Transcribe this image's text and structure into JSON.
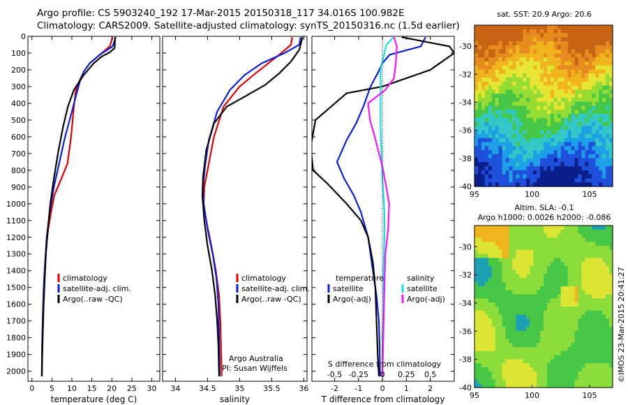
{
  "header": {
    "title_line1": "Argo profile: CS 5903240_192 17-Mar-2015 20150318_117 34.016S 100.982E",
    "title_line2": "Climatology: CARS2009. Satellite-adjusted climatology: synTS_20150316.nc (1.5d earlier)"
  },
  "maps": {
    "sst_title": "sat. SST: 20.9 Argo: 20.6",
    "sla_title_line1": "Altim. SLA: -0.1",
    "sla_title_line2": "Argo h1000: 0.0026 h2000: -0.086",
    "stamp": "©IMOS 23-Mar-2015 20:41:27",
    "sst_colors": [
      "#0a1e8c",
      "#1e50dc",
      "#1ea0e6",
      "#32c8c8",
      "#46c846",
      "#96dc32",
      "#e6e632",
      "#f0b41e",
      "#e68c1e",
      "#c86414"
    ],
    "sla_colors": [
      "#1ea0b4",
      "#46c846",
      "#8cdc3c",
      "#dce632",
      "#f0b41e"
    ]
  },
  "colors": {
    "climatology": "#e00000",
    "satellite": "#0a1edc",
    "argo": "#000000",
    "sal_satellite": "#10e0e8",
    "sal_argo": "#ff10ff"
  },
  "chart_data": [
    {
      "type": "line",
      "title": "",
      "xlabel": "temperature (deg C)",
      "ylabel": "",
      "xlim": [
        -1,
        32
      ],
      "ylim": [
        2060,
        0
      ],
      "xticks": [
        0,
        5,
        10,
        15,
        20,
        25,
        30
      ],
      "xtick_labels": [
        "0",
        "5",
        "10",
        "15",
        "20",
        "25",
        "30"
      ],
      "yticks": [
        0,
        100,
        200,
        300,
        400,
        500,
        600,
        700,
        800,
        900,
        1000,
        1100,
        1200,
        1300,
        1400,
        1500,
        1600,
        1700,
        1800,
        1900,
        2000
      ],
      "ytick_labels": [
        "0",
        "100",
        "200",
        "300",
        "400",
        "500",
        "600",
        "700",
        "800",
        "900",
        "1000",
        "1100",
        "1200",
        "1300",
        "1400",
        "1500",
        "1600",
        "1700",
        "1800",
        "1900",
        "2000"
      ],
      "legend": [
        "climatology",
        "satellite-adj. clim.",
        "Argo(..raw -QC)"
      ],
      "series": [
        {
          "name": "climatology",
          "color": "#e00000",
          "x": [
            20.2,
            19.5,
            17,
            14.5,
            13,
            12,
            11,
            10.5,
            9.8,
            8.9,
            7.2,
            5.6,
            4.8,
            4.1,
            3.6,
            3.2,
            2.9,
            2.7,
            2.55,
            2.45
          ],
          "y": [
            5,
            60,
            110,
            160,
            210,
            260,
            320,
            420,
            600,
            760,
            860,
            950,
            1050,
            1150,
            1250,
            1400,
            1550,
            1700,
            1850,
            2030
          ]
        },
        {
          "name": "satellite-adj. clim.",
          "color": "#0a1edc",
          "x": [
            21,
            20.2,
            17,
            14.5,
            13,
            12,
            11.2,
            10,
            8.3,
            6.8,
            5.5,
            4.8,
            4.2,
            3.7,
            3.3,
            2.95,
            2.75,
            2.6,
            2.5
          ],
          "y": [
            5,
            60,
            110,
            160,
            210,
            270,
            340,
            450,
            600,
            760,
            900,
            1000,
            1100,
            1200,
            1350,
            1500,
            1650,
            1800,
            2030
          ]
        },
        {
          "name": "Argo(..raw -QC)",
          "color": "#000000",
          "x": [
            20.8,
            20.7,
            19.5,
            17.5,
            15.5,
            13,
            10.5,
            9,
            7.8,
            6.5,
            5.5,
            4.6,
            4,
            3.5,
            3.2,
            2.95,
            2.75,
            2.6,
            2.5
          ],
          "y": [
            5,
            70,
            95,
            120,
            160,
            230,
            320,
            420,
            540,
            700,
            850,
            1000,
            1150,
            1300,
            1450,
            1600,
            1750,
            1900,
            2030
          ]
        }
      ]
    },
    {
      "type": "line",
      "title": "",
      "xlabel": "salinity",
      "ylabel": "",
      "xlim": [
        33.8,
        36.05
      ],
      "ylim": [
        2060,
        0
      ],
      "xticks": [
        34,
        34.5,
        35,
        35.5,
        36
      ],
      "xtick_labels": [
        "34",
        "34.5",
        "35",
        "35.5",
        "36"
      ],
      "legend": [
        "climatology",
        "satellite-adj. clim.",
        "Argo(..raw -QC)"
      ],
      "annotations": [
        "Argo Australia",
        "PI: Susan Wijffels"
      ],
      "series": [
        {
          "name": "climatology",
          "color": "#e00000",
          "x": [
            35.82,
            35.8,
            35.65,
            35.45,
            35.22,
            35.0,
            34.75,
            34.6,
            34.5,
            34.45,
            34.44,
            34.48,
            34.56,
            34.63,
            34.68,
            34.7,
            34.71,
            34.72
          ],
          "y": [
            5,
            50,
            100,
            160,
            230,
            300,
            420,
            600,
            800,
            900,
            1000,
            1100,
            1250,
            1400,
            1550,
            1700,
            1850,
            2030
          ]
        },
        {
          "name": "satellite-adj. clim.",
          "color": "#0a1edc",
          "x": [
            35.95,
            35.93,
            35.7,
            35.35,
            35.08,
            34.85,
            34.65,
            34.52,
            34.46,
            34.43,
            34.44,
            34.5,
            34.58,
            34.64,
            34.67,
            34.68,
            34.69
          ],
          "y": [
            5,
            50,
            100,
            160,
            230,
            320,
            450,
            620,
            780,
            900,
            1000,
            1150,
            1300,
            1450,
            1600,
            1800,
            2030
          ]
        },
        {
          "name": "Argo(..raw -QC)",
          "color": "#000000",
          "x": [
            35.98,
            35.93,
            35.8,
            35.62,
            35.4,
            35.08,
            34.8,
            34.6,
            34.48,
            34.43,
            34.42,
            34.45,
            34.5,
            34.57,
            34.62,
            34.65,
            34.67,
            34.68
          ],
          "y": [
            5,
            80,
            150,
            220,
            290,
            360,
            420,
            520,
            680,
            840,
            950,
            1100,
            1250,
            1400,
            1550,
            1700,
            1850,
            2030
          ]
        }
      ]
    },
    {
      "type": "line",
      "title": "",
      "xlabel": "T difference from climatology",
      "x2label": "S difference from climatology",
      "ylabel": "",
      "xlim": [
        -2.95,
        3
      ],
      "ylim": [
        2060,
        0
      ],
      "xticks": [
        -2,
        -1,
        0,
        1,
        2
      ],
      "xtick_labels": [
        "-2",
        "-1",
        "0",
        "1",
        "2"
      ],
      "x2lim": [
        -0.737,
        0.75
      ],
      "x2ticks": [
        -0.5,
        -0.25,
        0,
        0.25,
        0.5
      ],
      "x2tick_labels": [
        "-0.5",
        "-0.25",
        "0",
        "0.25",
        "0.5"
      ],
      "legend_headers": [
        "temperature",
        "salinity"
      ],
      "legend": [
        "satellite",
        "Argo(-adj)",
        "satellite",
        "Argo(-adj)"
      ],
      "series": [
        {
          "name": "temperature satellite",
          "color": "#0a1edc",
          "axis": "T",
          "x": [
            1.8,
            1.6,
            0.3,
            0.0,
            -0.2,
            -0.5,
            -0.8,
            -1.1,
            -1.5,
            -1.9,
            -1.6,
            -1.2,
            -0.9,
            -0.6,
            -0.4,
            -0.25,
            -0.15,
            -0.12,
            -0.1
          ],
          "y": [
            5,
            60,
            110,
            160,
            220,
            300,
            420,
            520,
            620,
            750,
            850,
            950,
            1050,
            1200,
            1400,
            1550,
            1700,
            1850,
            2030
          ]
        },
        {
          "name": "temperature Argo(-adj)",
          "color": "#000000",
          "axis": "T",
          "x": [
            0.8,
            2.8,
            3.0,
            2.0,
            0.0,
            -1.5,
            -2.8,
            -3.0,
            -2.9,
            -2.3,
            -1.5,
            -0.9,
            -0.6,
            -0.4,
            -0.3,
            -0.25,
            -0.2,
            -0.15
          ],
          "y": [
            5,
            60,
            100,
            200,
            300,
            340,
            500,
            660,
            800,
            880,
            1000,
            1100,
            1200,
            1350,
            1500,
            1700,
            1900,
            2030
          ]
        },
        {
          "name": "salinity satellite",
          "color": "#10e0e8",
          "axis": "S",
          "x": [
            0.12,
            0.04,
            0.02,
            -0.02,
            -0.02,
            -0.02,
            -0.02,
            -0.01,
            0.0,
            0.01,
            0.02,
            0.02,
            0.01,
            0.01,
            0.0,
            0.0
          ],
          "y": [
            5,
            50,
            100,
            200,
            300,
            400,
            550,
            700,
            850,
            950,
            1050,
            1200,
            1400,
            1600,
            1800,
            2030
          ]
        },
        {
          "name": "salinity Argo(-adj)",
          "color": "#ff10ff",
          "axis": "S",
          "x": [
            0.12,
            0.15,
            0.14,
            0.12,
            0.03,
            -0.15,
            -0.13,
            -0.08,
            0.0,
            0.04,
            0.07,
            0.06,
            0.03,
            0.02,
            0.01,
            0.0
          ],
          "y": [
            5,
            60,
            160,
            250,
            320,
            400,
            500,
            600,
            780,
            900,
            1000,
            1150,
            1300,
            1500,
            1750,
            2030
          ]
        }
      ]
    },
    {
      "type": "heatmap",
      "title": "sat. SST: 20.9 Argo: 20.6",
      "xlim": [
        95,
        107
      ],
      "ylim": [
        -40,
        -28.5
      ],
      "xticks": [
        95,
        100,
        105
      ],
      "xtick_labels": [
        "95",
        "100",
        "105"
      ],
      "yticks": [
        -40,
        -38,
        -36,
        -34,
        -32,
        -30
      ],
      "ytick_labels": [
        "-40",
        "-38",
        "-36",
        "-34",
        "-32",
        "-30"
      ]
    },
    {
      "type": "heatmap",
      "title": "Altim. SLA: -0.1 / Argo h1000: 0.0026 h2000: -0.086",
      "xlim": [
        95,
        107
      ],
      "ylim": [
        -40,
        -28.5
      ],
      "xticks": [
        95,
        100,
        105
      ],
      "xtick_labels": [
        "95",
        "100",
        "105"
      ],
      "yticks": [
        -40,
        -38,
        -36,
        -34,
        -32,
        -30
      ],
      "ytick_labels": [
        "-40",
        "-38",
        "-36",
        "-34",
        "-32",
        "-30"
      ]
    }
  ]
}
